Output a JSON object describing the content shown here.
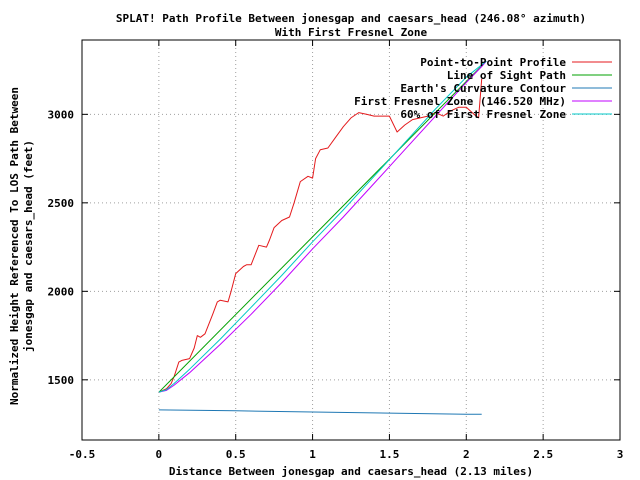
{
  "chart_data": {
    "type": "line",
    "title": "SPLAT! Path Profile Between jonesgap and caesars_head (246.08° azimuth)",
    "subtitle": "With First Fresnel Zone",
    "xlabel": "Distance Between jonesgap and caesars_head (2.13 miles)",
    "ylabel_line1": "Normalized Height Referenced To LOS Path Between",
    "ylabel_line2": "jonesgap and caesars_head (feet)",
    "xlim": [
      -0.5,
      3
    ],
    "ylim": [
      1160,
      3420
    ],
    "x_ticks": [
      -0.5,
      0,
      0.5,
      1,
      1.5,
      2,
      2.5,
      3
    ],
    "x_tick_labels": [
      "-0.5",
      "0",
      "0.5",
      "1",
      "1.5",
      "2",
      "2.5",
      "3"
    ],
    "y_ticks": [
      1500,
      2000,
      2500,
      3000
    ],
    "y_tick_labels": [
      "1500",
      "2000",
      "2500",
      "3000"
    ],
    "grid": true,
    "legend_position": "top-right",
    "series": [
      {
        "name": "Point-to-Point Profile",
        "color": "#e41a1c",
        "x": [
          0,
          0.05,
          0.08,
          0.1,
          0.13,
          0.15,
          0.2,
          0.23,
          0.25,
          0.27,
          0.3,
          0.35,
          0.38,
          0.4,
          0.45,
          0.47,
          0.5,
          0.55,
          0.57,
          0.6,
          0.65,
          0.7,
          0.72,
          0.75,
          0.8,
          0.85,
          0.88,
          0.92,
          0.97,
          1.0,
          1.02,
          1.05,
          1.1,
          1.15,
          1.2,
          1.25,
          1.3,
          1.35,
          1.4,
          1.45,
          1.5,
          1.55,
          1.6,
          1.65,
          1.7,
          1.75,
          1.8,
          1.85,
          1.9,
          1.95,
          2.0,
          2.05,
          2.08,
          2.1
        ],
        "y": [
          1430,
          1450,
          1480,
          1520,
          1600,
          1610,
          1620,
          1680,
          1750,
          1740,
          1760,
          1870,
          1940,
          1950,
          1940,
          2000,
          2100,
          2140,
          2150,
          2150,
          2260,
          2250,
          2290,
          2360,
          2400,
          2420,
          2500,
          2620,
          2650,
          2640,
          2750,
          2800,
          2810,
          2870,
          2930,
          2980,
          3010,
          3000,
          2990,
          2990,
          2990,
          2900,
          2940,
          2970,
          2980,
          2990,
          3010,
          2990,
          3020,
          3040,
          3040,
          3000,
          2980,
          3200
        ]
      },
      {
        "name": "Line of Sight Path",
        "color": "#00a000",
        "x": [
          0,
          2.13
        ],
        "y": [
          1430,
          3300
        ]
      },
      {
        "name": "Earth's Curvature Contour",
        "color": "#1f78b4",
        "x": [
          0,
          0.5,
          1,
          1.5,
          2,
          2.1
        ],
        "y": [
          1330,
          1325,
          1318,
          1312,
          1306,
          1305
        ]
      },
      {
        "name": "First Fresnel Zone (146.520 MHz)",
        "color": "#c000ff",
        "x": [
          0,
          0.05,
          0.1,
          0.2,
          0.4,
          0.6,
          0.8,
          1.0,
          1.2,
          1.4,
          1.6,
          1.8,
          2.0,
          2.1,
          2.13
        ],
        "y": [
          1430,
          1440,
          1470,
          1540,
          1700,
          1870,
          2050,
          2240,
          2420,
          2610,
          2800,
          2990,
          3180,
          3270,
          3300
        ]
      },
      {
        "name": "60% of First Fresnel Zone",
        "color": "#00c8c8",
        "x": [
          0,
          0.05,
          0.1,
          0.2,
          0.4,
          0.6,
          0.8,
          1.0,
          1.2,
          1.4,
          1.6,
          1.8,
          2.0,
          2.1,
          2.13
        ],
        "y": [
          1430,
          1445,
          1480,
          1560,
          1730,
          1910,
          2090,
          2280,
          2460,
          2650,
          2840,
          3030,
          3210,
          3280,
          3300
        ]
      }
    ]
  }
}
